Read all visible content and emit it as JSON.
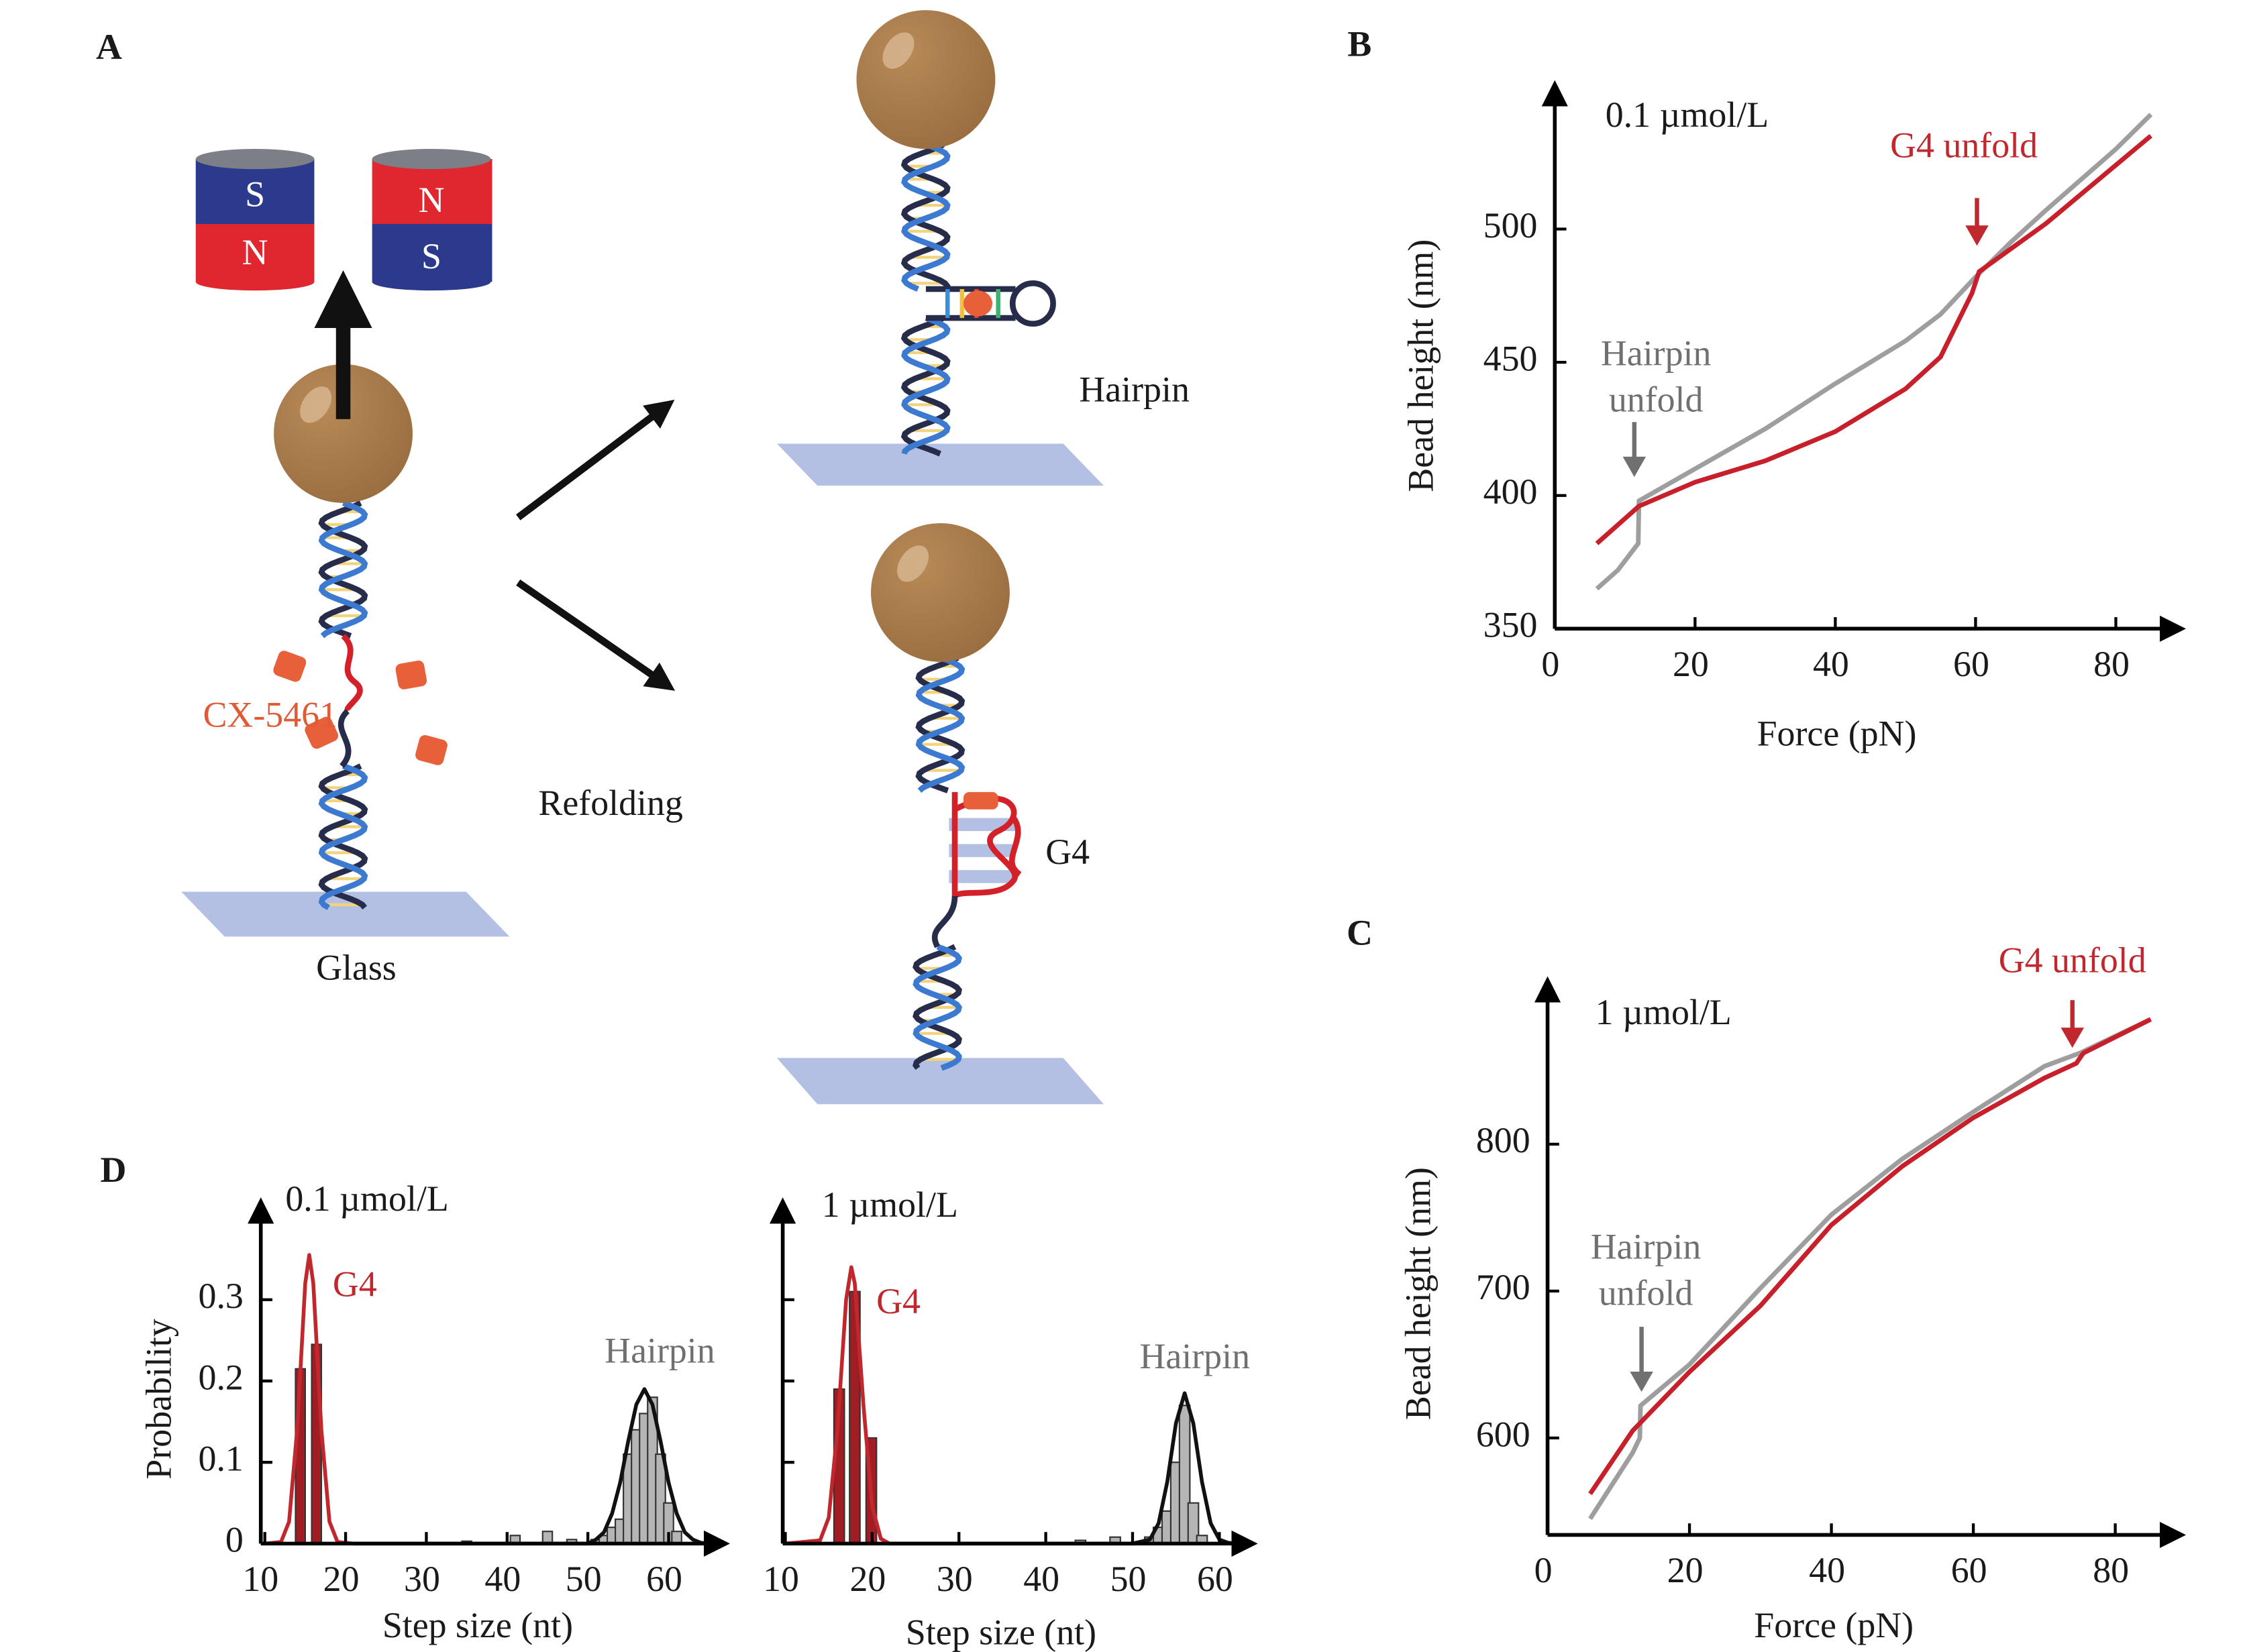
{
  "diagram": {
    "panel": "A",
    "magnets": [
      [
        "S",
        "N"
      ],
      [
        "N",
        "S"
      ]
    ],
    "drug": "CX-5461",
    "surface": "Glass",
    "process": "Refolding",
    "products": [
      "Hairpin",
      "G4"
    ]
  },
  "chart_data": [
    {
      "panel": "B",
      "type": "line",
      "xlabel": "Force (pN)",
      "ylabel": "Bead height (nm)",
      "xlim": [
        0,
        87
      ],
      "ylim": [
        350,
        548
      ],
      "xticks": [
        0,
        20,
        40,
        60,
        80
      ],
      "yticks": [
        350,
        400,
        450,
        500
      ],
      "annotations": [
        {
          "text": "0.1 µmol/L",
          "color": "#1a1a1a"
        },
        {
          "text": "G4 unfold",
          "color": "#c0282e"
        },
        {
          "text": [
            "Hairpin",
            "unfold"
          ],
          "color": "#707070"
        }
      ],
      "series": [
        {
          "color": "#9e9e9e",
          "x": [
            6,
            9,
            11.9,
            12,
            20,
            30,
            40,
            50,
            55,
            60,
            65,
            70,
            80,
            85
          ],
          "values": [
            365,
            372,
            382,
            398,
            410,
            425,
            442,
            458,
            468,
            482,
            495,
            507,
            530,
            543
          ]
        },
        {
          "color": "#c8202a",
          "x": [
            6,
            12,
            20,
            30,
            40,
            50,
            55,
            59.5,
            60.5,
            70,
            80,
            85
          ],
          "values": [
            382,
            396,
            405,
            413,
            424,
            440,
            452,
            476,
            484,
            502,
            524,
            535
          ]
        }
      ]
    },
    {
      "panel": "C",
      "type": "line",
      "xlabel": "Force (pN)",
      "ylabel": "Bead height (nm)",
      "xlim": [
        0,
        87
      ],
      "ylim": [
        534,
        900
      ],
      "xticks": [
        0,
        20,
        40,
        60,
        80
      ],
      "yticks": [
        600,
        700,
        800
      ],
      "annotations": [
        {
          "text": "1 µmol/L",
          "color": "#1a1a1a"
        },
        {
          "text": "G4 unfold",
          "color": "#c0282e"
        },
        {
          "text": [
            "Hairpin",
            "unfold"
          ],
          "color": "#707070"
        }
      ],
      "series": [
        {
          "color": "#9e9e9e",
          "x": [
            6,
            12,
            13,
            13.1,
            20,
            30,
            40,
            50,
            60,
            70,
            75,
            85
          ],
          "values": [
            545,
            590,
            600,
            622,
            650,
            702,
            752,
            790,
            822,
            853,
            862,
            885
          ]
        },
        {
          "color": "#c8202a",
          "x": [
            6,
            12,
            20,
            30,
            40,
            50,
            60,
            70,
            74.5,
            75.5,
            85
          ],
          "values": [
            562,
            605,
            645,
            690,
            745,
            785,
            818,
            845,
            855,
            862,
            885
          ]
        }
      ]
    },
    {
      "panel": "D",
      "type": "bar",
      "xlabel": "Step size (nt)",
      "ylabel": "Probability",
      "xlim": [
        9.5,
        65
      ],
      "ylim": [
        0,
        0.4
      ],
      "xticks": [
        10,
        20,
        30,
        40,
        50,
        60
      ],
      "yticks": [
        0,
        0.1,
        0.2,
        0.3
      ],
      "annotations": [
        {
          "text": "0.1 µmol/L",
          "color": "#1a1a1a"
        },
        {
          "text": "G4",
          "color": "#c0282e"
        },
        {
          "text": "Hairpin",
          "color": "#707070"
        }
      ],
      "series": [
        {
          "type": "bar",
          "color": "#a11d24",
          "x": [
            14.4,
            16.4
          ],
          "values": [
            0.215,
            0.245
          ]
        },
        {
          "type": "bar",
          "color": "#b5b5b5",
          "x": [
            35,
            41,
            45,
            48,
            51,
            52,
            53,
            54,
            55,
            56,
            57,
            58,
            59,
            60,
            61
          ],
          "values": [
            0.003,
            0.01,
            0.015,
            0.005,
            0.005,
            0.01,
            0.02,
            0.03,
            0.11,
            0.14,
            0.16,
            0.18,
            0.11,
            0.05,
            0.015
          ]
        },
        {
          "type": "line",
          "color": "#c0282e",
          "x": [
            10,
            12,
            13,
            14,
            15,
            15.5,
            16,
            17,
            18,
            19,
            21
          ],
          "values": [
            0,
            0.002,
            0.027,
            0.14,
            0.32,
            0.355,
            0.32,
            0.14,
            0.027,
            0.002,
            0
          ]
        },
        {
          "type": "line",
          "color": "#111111",
          "x": [
            21,
            50,
            51,
            52,
            53,
            54,
            55,
            56,
            57,
            58,
            59,
            60,
            61,
            62,
            63,
            64,
            65
          ],
          "values": [
            0,
            0,
            0.005,
            0.014,
            0.037,
            0.075,
            0.126,
            0.171,
            0.19,
            0.171,
            0.126,
            0.075,
            0.037,
            0.014,
            0.005,
            0.001,
            0
          ]
        }
      ]
    },
    {
      "type": "bar",
      "xlabel": "Step size (nt)",
      "xlim": [
        9.7,
        62
      ],
      "ylim": [
        0,
        0.4
      ],
      "xticks": [
        10,
        20,
        30,
        40,
        50,
        60
      ],
      "yticks": [
        {
          "value": 0.1,
          "label": null
        },
        {
          "value": 0.2,
          "label": null
        },
        {
          "value": 0.3,
          "label": null
        }
      ],
      "annotations": [
        {
          "text": "1 µmol/L",
          "color": "#1a1a1a"
        },
        {
          "text": "G4",
          "color": "#c0282e"
        },
        {
          "text": "Hairpin",
          "color": "#707070"
        }
      ],
      "series": [
        {
          "type": "bar",
          "color": "#a11d24",
          "x": [
            16.2,
            18,
            19.9
          ],
          "values": [
            0.19,
            0.31,
            0.13
          ]
        },
        {
          "type": "bar",
          "color": "#b5b5b5",
          "x": [
            44,
            48,
            52,
            53,
            54,
            55,
            56,
            57,
            58
          ],
          "values": [
            0.004,
            0.008,
            0.008,
            0.02,
            0.04,
            0.1,
            0.17,
            0.05,
            0.01
          ]
        },
        {
          "type": "line",
          "color": "#c0282e",
          "x": [
            10,
            14,
            15,
            16,
            17,
            17.6,
            18,
            19,
            20,
            21,
            22
          ],
          "values": [
            0,
            0.004,
            0.032,
            0.14,
            0.3,
            0.34,
            0.32,
            0.17,
            0.046,
            0.006,
            0
          ]
        },
        {
          "type": "line",
          "color": "#111111",
          "x": [
            22,
            50,
            52,
            53,
            54,
            55,
            56,
            57,
            58,
            59,
            60,
            61,
            62
          ],
          "values": [
            0,
            0,
            0.005,
            0.025,
            0.076,
            0.148,
            0.185,
            0.148,
            0.076,
            0.025,
            0.005,
            0.001,
            0
          ]
        }
      ]
    }
  ]
}
